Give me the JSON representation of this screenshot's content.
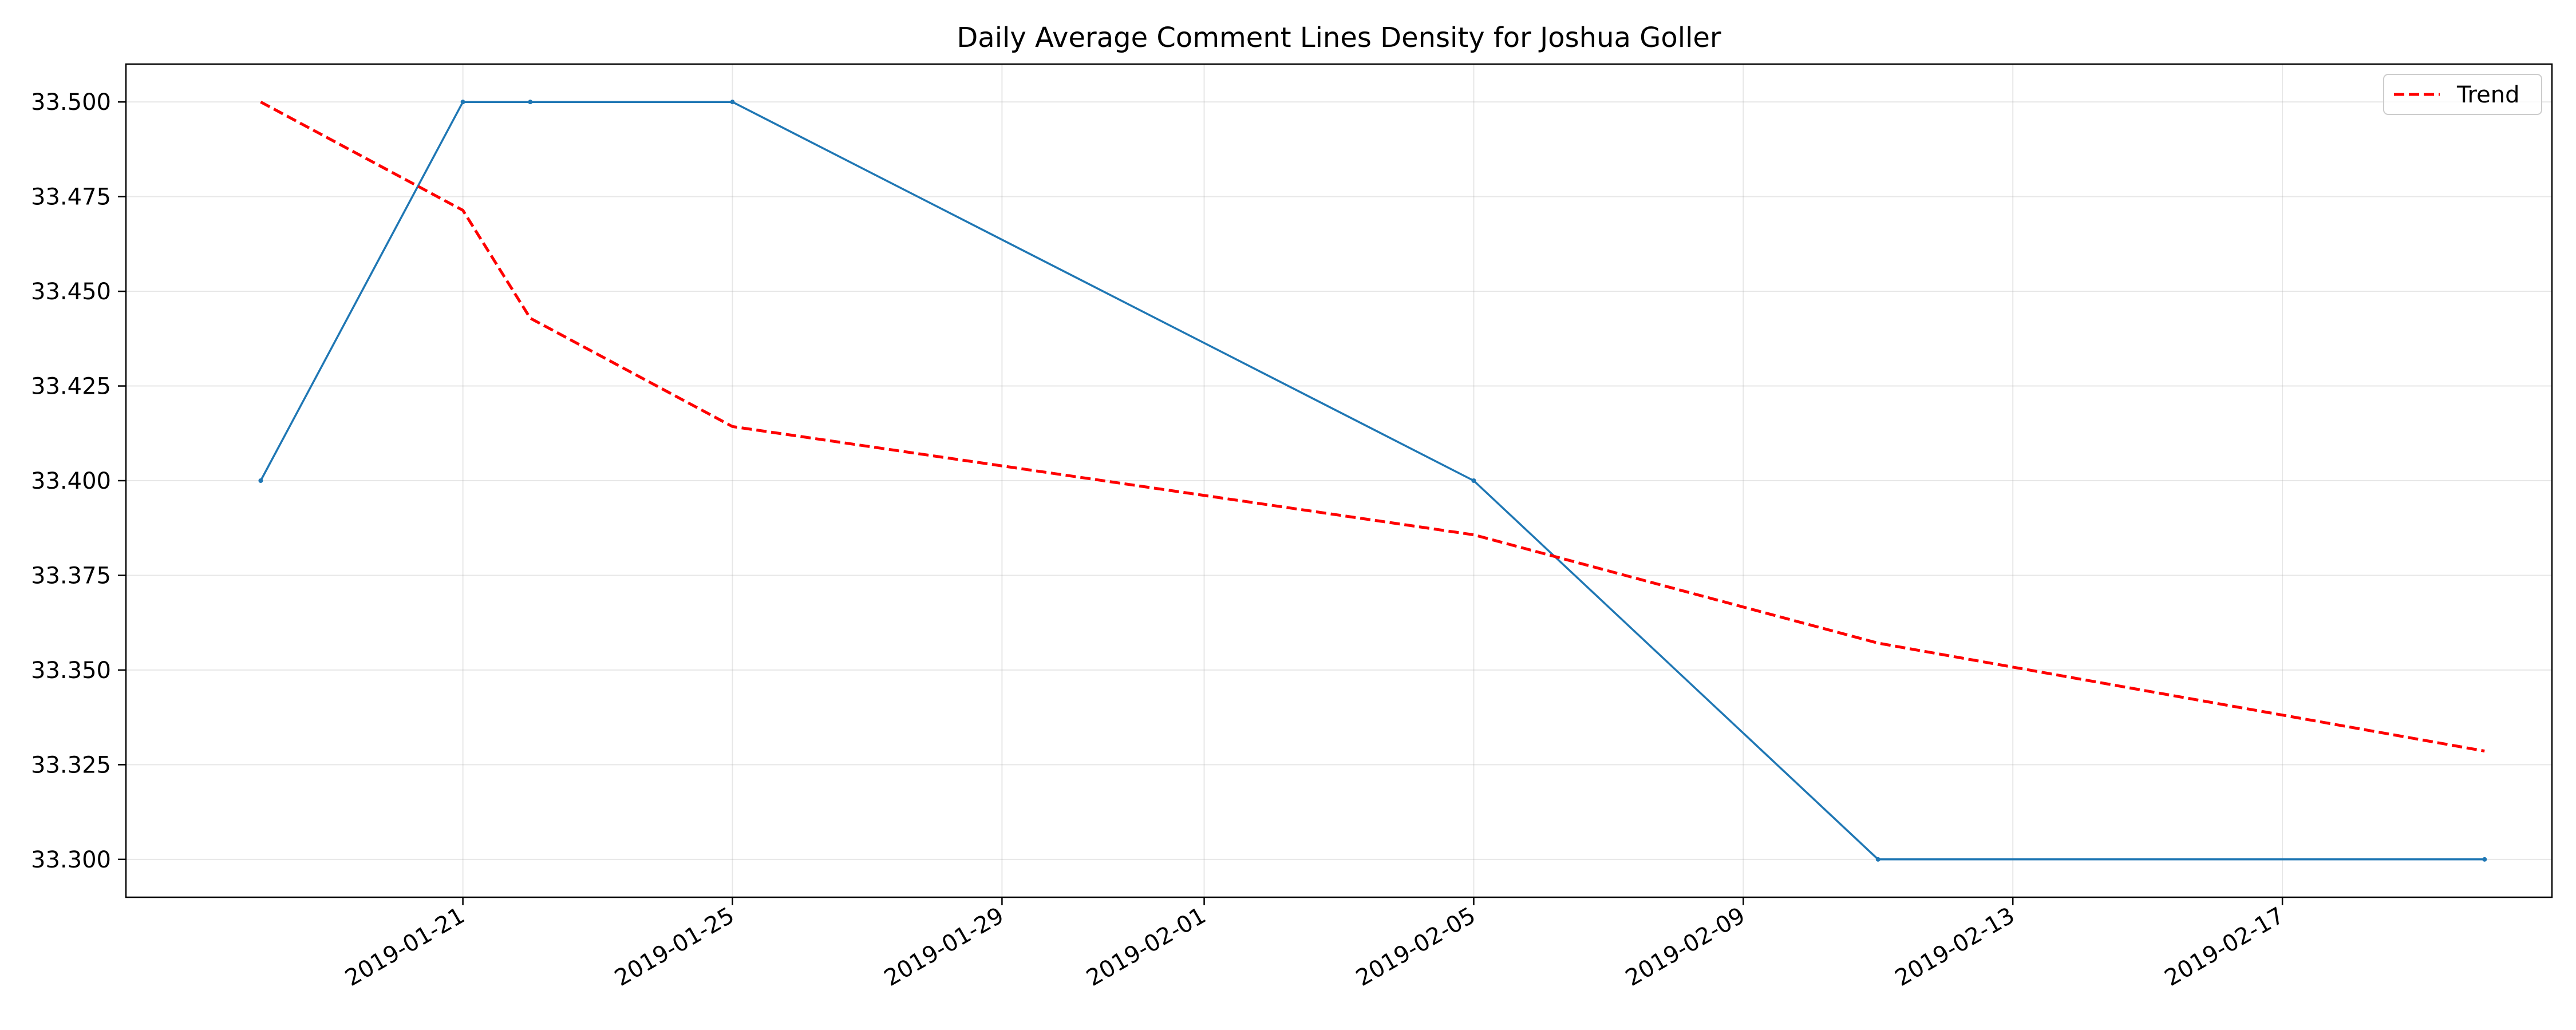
{
  "chart_data": {
    "type": "line",
    "title": "Daily Average Comment Lines Density for Joshua Goller",
    "xlabel": "",
    "ylabel": "",
    "x_type": "date",
    "xlim": [
      "2019-01-16",
      "2019-02-21"
    ],
    "ylim": [
      33.29,
      33.51
    ],
    "x_ticks": [
      "2019-01-21",
      "2019-01-25",
      "2019-01-29",
      "2019-02-01",
      "2019-02-05",
      "2019-02-09",
      "2019-02-13",
      "2019-02-17"
    ],
    "y_ticks": [
      "33.300",
      "33.325",
      "33.350",
      "33.375",
      "33.400",
      "33.425",
      "33.450",
      "33.475",
      "33.500"
    ],
    "grid": true,
    "legend_position": "top-right",
    "series": [
      {
        "x": [
          "2019-01-18",
          "2019-01-21",
          "2019-01-22",
          "2019-01-25",
          "2019-02-05",
          "2019-02-11",
          "2019-02-20"
        ],
        "y": [
          33.4,
          33.5,
          33.5,
          33.5,
          33.4,
          33.3,
          33.3
        ],
        "color": "#1f77b4",
        "style": "solid",
        "markers": true
      },
      {
        "name": "Trend",
        "x": [
          "2019-01-18",
          "2019-01-21",
          "2019-01-22",
          "2019-01-25",
          "2019-02-05",
          "2019-02-11",
          "2019-02-20"
        ],
        "y": [
          33.5,
          33.4714,
          33.4429,
          33.4143,
          33.3857,
          33.3571,
          33.3286
        ],
        "color": "#ff0000",
        "style": "dashed",
        "markers": false
      }
    ]
  }
}
